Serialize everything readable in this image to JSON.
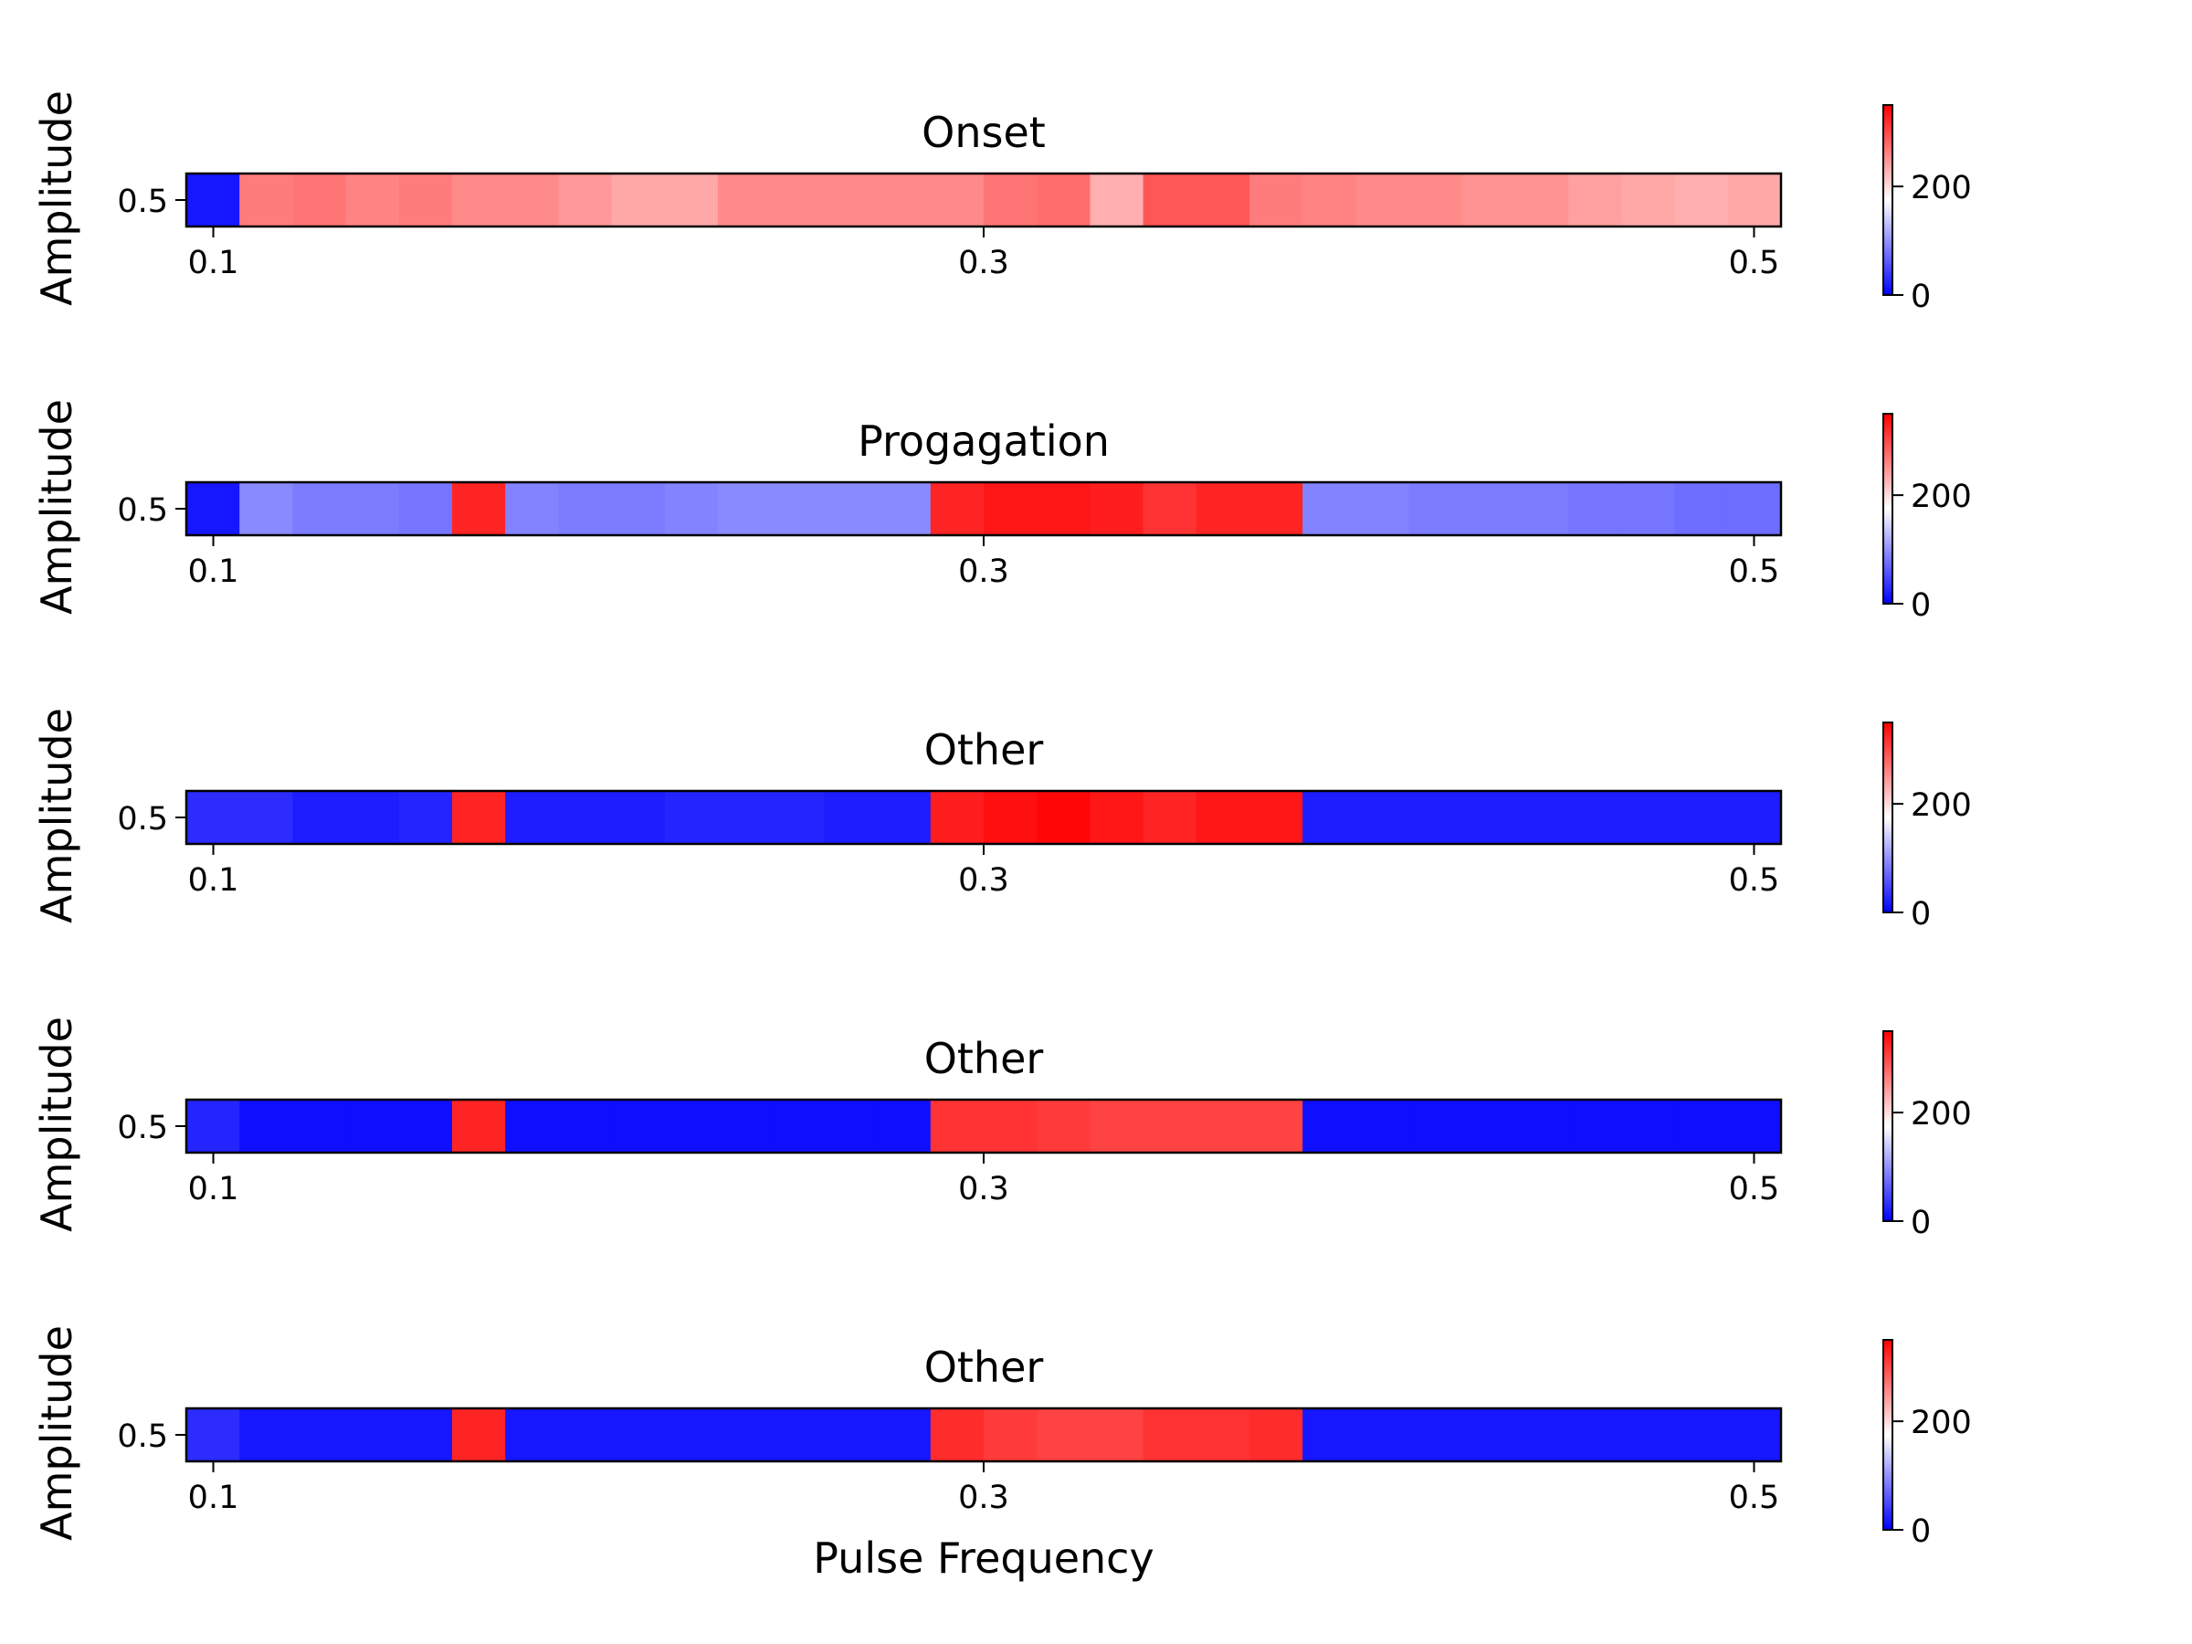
{
  "chart_data": [
    {
      "type": "heatmap",
      "title": "Onset",
      "ylabel": "Amplitude",
      "xlabel": "",
      "y_categories": [
        "0.5"
      ],
      "x_tick_labels": [
        "0.1",
        "0.3",
        "0.5"
      ],
      "x_tick_values": [
        0.1,
        0.3,
        0.5
      ],
      "x_range": [
        0.093,
        0.507
      ],
      "colorbar": {
        "range": [
          0,
          350
        ],
        "ticks": [
          0,
          200
        ],
        "tick_labels": [
          "0",
          "200"
        ]
      },
      "values": [
        15,
        265,
        270,
        260,
        265,
        255,
        255,
        245,
        235,
        235,
        255,
        255,
        255,
        255,
        255,
        270,
        275,
        230,
        290,
        290,
        265,
        260,
        255,
        255,
        250,
        250,
        240,
        235,
        230,
        235
      ]
    },
    {
      "type": "heatmap",
      "title": "Progagation",
      "ylabel": "Amplitude",
      "xlabel": "",
      "y_categories": [
        "0.5"
      ],
      "x_tick_labels": [
        "0.1",
        "0.3",
        "0.5"
      ],
      "x_tick_values": [
        0.1,
        0.3,
        0.5
      ],
      "x_range": [
        0.093,
        0.507
      ],
      "colorbar": {
        "range": [
          0,
          350
        ],
        "ticks": [
          0,
          200
        ],
        "tick_labels": [
          "0",
          "200"
        ]
      },
      "values": [
        15,
        95,
        85,
        85,
        80,
        325,
        90,
        85,
        85,
        90,
        95,
        95,
        95,
        95,
        325,
        335,
        335,
        330,
        315,
        325,
        325,
        90,
        90,
        85,
        85,
        85,
        80,
        80,
        75,
        75
      ]
    },
    {
      "type": "heatmap",
      "title": "Other",
      "ylabel": "Amplitude",
      "xlabel": "",
      "y_categories": [
        "0.5"
      ],
      "x_tick_labels": [
        "0.1",
        "0.3",
        "0.5"
      ],
      "x_tick_values": [
        0.1,
        0.3,
        0.5
      ],
      "x_range": [
        0.093,
        0.507
      ],
      "colorbar": {
        "range": [
          0,
          350
        ],
        "ticks": [
          0,
          200
        ],
        "tick_labels": [
          "0",
          "200"
        ]
      },
      "values": [
        30,
        30,
        20,
        20,
        25,
        325,
        20,
        20,
        20,
        25,
        25,
        25,
        20,
        20,
        330,
        340,
        345,
        335,
        325,
        335,
        335,
        20,
        20,
        20,
        20,
        20,
        20,
        20,
        20,
        20
      ]
    },
    {
      "type": "heatmap",
      "title": "Other",
      "ylabel": "Amplitude",
      "xlabel": "",
      "y_categories": [
        "0.5"
      ],
      "x_tick_labels": [
        "0.1",
        "0.3",
        "0.5"
      ],
      "x_tick_values": [
        0.1,
        0.3,
        0.5
      ],
      "x_range": [
        0.093,
        0.507
      ],
      "colorbar": {
        "range": [
          0,
          350
        ],
        "ticks": [
          0,
          200
        ],
        "tick_labels": [
          "0",
          "200"
        ]
      },
      "values": [
        25,
        10,
        10,
        10,
        10,
        325,
        10,
        10,
        10,
        10,
        10,
        10,
        10,
        10,
        315,
        315,
        310,
        305,
        305,
        305,
        305,
        10,
        10,
        10,
        10,
        10,
        10,
        10,
        10,
        10
      ]
    },
    {
      "type": "heatmap",
      "title": "Other",
      "ylabel": "Amplitude",
      "xlabel": "Pulse Frequency",
      "y_categories": [
        "0.5"
      ],
      "x_tick_labels": [
        "0.1",
        "0.3",
        "0.5"
      ],
      "x_tick_values": [
        0.1,
        0.3,
        0.5
      ],
      "x_range": [
        0.093,
        0.507
      ],
      "colorbar": {
        "range": [
          0,
          350
        ],
        "ticks": [
          0,
          200
        ],
        "tick_labels": [
          "0",
          "200"
        ]
      },
      "values": [
        30,
        15,
        15,
        15,
        15,
        325,
        15,
        15,
        15,
        15,
        15,
        15,
        15,
        15,
        320,
        310,
        305,
        305,
        315,
        315,
        320,
        15,
        15,
        15,
        15,
        15,
        15,
        15,
        15,
        15
      ]
    }
  ]
}
